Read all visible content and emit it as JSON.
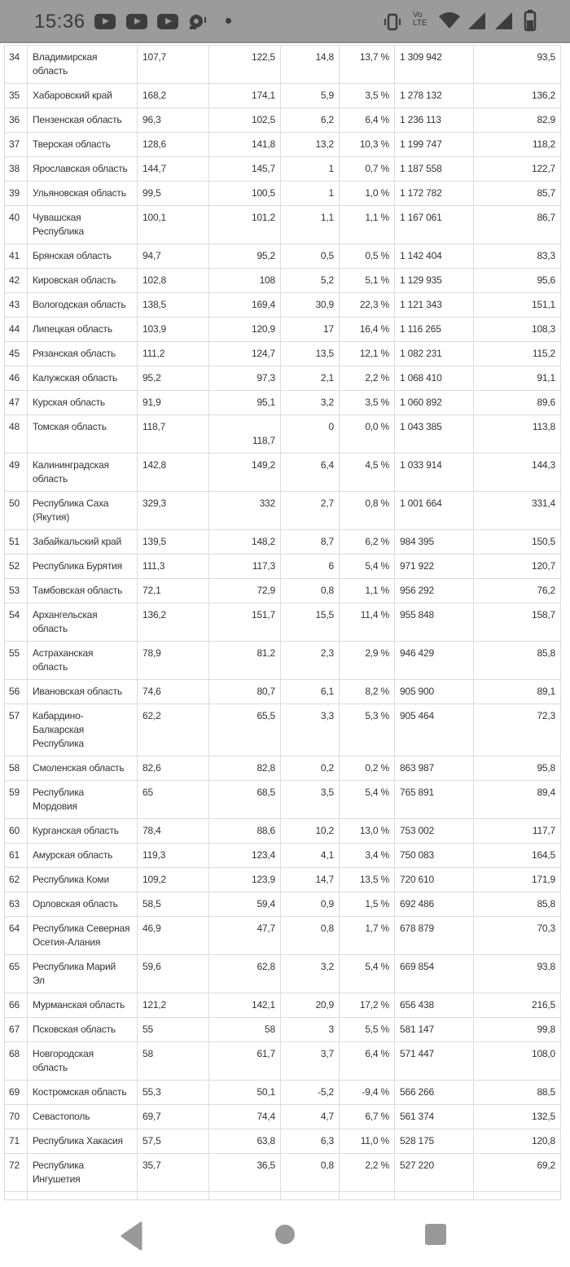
{
  "status_bar": {
    "time": "15:36",
    "lte_label": "Vo LTE",
    "icons": [
      "youtube-icon",
      "youtube-icon",
      "youtube-icon",
      "gauge-alert-icon",
      "dot-icon",
      "vibrate-icon",
      "volte-icon",
      "wifi-icon",
      "signal-icon",
      "signal-icon",
      "battery-icon"
    ]
  },
  "table": {
    "rows": [
      [
        "34",
        "Владимирская\nобласть",
        "107,7",
        "122,5",
        "14,8",
        "13,7 %",
        "1 309 942",
        "93,5"
      ],
      [
        "35",
        "Хабаровский край",
        "168,2",
        "174,1",
        "5,9",
        "3,5 %",
        "1 278 132",
        "136,2"
      ],
      [
        "36",
        "Пензенская область",
        "96,3",
        "102,5",
        "6,2",
        "6,4 %",
        "1 236 113",
        "82,9"
      ],
      [
        "37",
        "Тверская область",
        "128,6",
        "141,8",
        "13,2",
        "10,3 %",
        "1 199 747",
        "118,2"
      ],
      [
        "38",
        "Ярославская область",
        "144,7",
        "145,7",
        "1",
        "0,7 %",
        "1 187 558",
        "122,7"
      ],
      [
        "39",
        "Ульяновская область",
        "99,5",
        "100,5",
        "1",
        "1,0 %",
        "1 172 782",
        "85,7"
      ],
      [
        "40",
        "Чувашская\nРеспублика",
        "100,1",
        "101,2",
        "1,1",
        "1,1 %",
        "1 167 061",
        "86,7"
      ],
      [
        "41",
        "Брянская область",
        "94,7",
        "95,2",
        "0,5",
        "0,5 %",
        "1 142 404",
        "83,3"
      ],
      [
        "42",
        "Кировская область",
        "102,8",
        "108",
        "5,2",
        "5,1 %",
        "1 129 935",
        "95,6"
      ],
      [
        "43",
        "Вологодская область",
        "138,5",
        "169,4",
        "30,9",
        "22,3 %",
        "1 121 343",
        "151,1"
      ],
      [
        "44",
        "Липецкая область",
        "103,9",
        "120,9",
        "17",
        "16,4 %",
        "1 116 265",
        "108,3"
      ],
      [
        "45",
        "Рязанская область",
        "111,2",
        "124,7",
        "13,5",
        "12,1 %",
        "1 082 231",
        "115,2"
      ],
      [
        "46",
        "Калужская область",
        "95,2",
        "97,3",
        "2,1",
        "2,2 %",
        "1 068 410",
        "91,1"
      ],
      [
        "47",
        "Курская область",
        "91,9",
        "95,1",
        "3,2",
        "3,5 %",
        "1 060 892",
        "89,6"
      ],
      [
        "48",
        "Томская область",
        "118,7",
        "118,7",
        "0",
        "0,0 %",
        "1 043 385",
        "113,8"
      ],
      [
        "49",
        "Калининградская\nобласть",
        "142,8",
        "149,2",
        "6,4",
        "4,5 %",
        "1 033 914",
        "144,3"
      ],
      [
        "50",
        "Республика Саха\n(Якутия)",
        "329,3",
        "332",
        "2,7",
        "0,8 %",
        "1 001 664",
        "331,4"
      ],
      [
        "51",
        "Забайкальский край",
        "139,5",
        "148,2",
        "8,7",
        "6,2 %",
        "984 395",
        "150,5"
      ],
      [
        "52",
        "Республика Бурятия",
        "111,3",
        "117,3",
        "6",
        "5,4 %",
        "971 922",
        "120,7"
      ],
      [
        "53",
        "Тамбовская область",
        "72,1",
        "72,9",
        "0,8",
        "1,1 %",
        "956 292",
        "76,2"
      ],
      [
        "54",
        "Архангельская\nобласть",
        "136,2",
        "151,7",
        "15,5",
        "11,4 %",
        "955 848",
        "158,7"
      ],
      [
        "55",
        "Астраханская\nобласть",
        "78,9",
        "81,2",
        "2,3",
        "2,9 %",
        "946 429",
        "85,8"
      ],
      [
        "56",
        "Ивановская область",
        "74,6",
        "80,7",
        "6,1",
        "8,2 %",
        "905 900",
        "89,1"
      ],
      [
        "57",
        "Кабардино-\nБалкарская\nРеспублика",
        "62,2",
        "65,5",
        "3,3",
        "5,3 %",
        "905 464",
        "72,3"
      ],
      [
        "58",
        "Смоленская область",
        "82,6",
        "82,8",
        "0,2",
        "0,2 %",
        "863 987",
        "95,8"
      ],
      [
        "59",
        "Республика\nМордовия",
        "65",
        "68,5",
        "3,5",
        "5,4 %",
        "765 891",
        "89,4"
      ],
      [
        "60",
        "Курганская область",
        "78,4",
        "88,6",
        "10,2",
        "13,0 %",
        "753 002",
        "117,7"
      ],
      [
        "61",
        "Амурская область",
        "119,3",
        "123,4",
        "4,1",
        "3,4 %",
        "750 083",
        "164,5"
      ],
      [
        "62",
        "Республика Коми",
        "109,2",
        "123,9",
        "14,7",
        "13,5 %",
        "720 610",
        "171,9"
      ],
      [
        "63",
        "Орловская область",
        "58,5",
        "59,4",
        "0,9",
        "1,5 %",
        "692 486",
        "85,8"
      ],
      [
        "64",
        "Республика Северная\nОсетия-Алания",
        "46,9",
        "47,7",
        "0,8",
        "1,7 %",
        "678 879",
        "70,3"
      ],
      [
        "65",
        "Республика Марий\nЭл",
        "59,6",
        "62,8",
        "3,2",
        "5,4 %",
        "669 854",
        "93,8"
      ],
      [
        "66",
        "Мурманская область",
        "121,2",
        "142,1",
        "20,9",
        "17,2 %",
        "656 438",
        "216,5"
      ],
      [
        "67",
        "Псковская область",
        "55",
        "58",
        "3",
        "5,5 %",
        "581 147",
        "99,8"
      ],
      [
        "68",
        "Новгородская\nобласть",
        "58",
        "61,7",
        "3,7",
        "6,4 %",
        "571 447",
        "108,0"
      ],
      [
        "69",
        "Костромская область",
        "55,3",
        "50,1",
        "-5,2",
        "-9,4 %",
        "566 266",
        "88,5"
      ],
      [
        "70",
        "Севастополь",
        "69,7",
        "74,4",
        "4,7",
        "6,7 %",
        "561 374",
        "132,5"
      ],
      [
        "71",
        "Республика Хакасия",
        "57,5",
        "63,8",
        "6,3",
        "11,0 %",
        "528 175",
        "120,8"
      ],
      [
        "72",
        "Республика\nИнгушетия",
        "35,7",
        "36,5",
        "0,8",
        "2,2 %",
        "527 220",
        "69,2"
      ],
      [
        "",
        "",
        "",
        "",
        "",
        "",
        "",
        ""
      ]
    ]
  },
  "colors": {
    "status_bar": "#9b9b9b",
    "grid": "#dcdcdc",
    "nav_icon": "#999999"
  }
}
